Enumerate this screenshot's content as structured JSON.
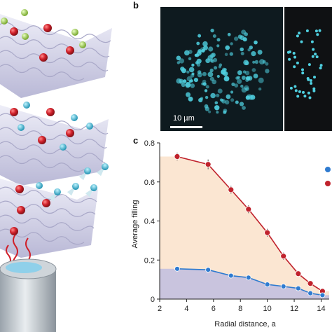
{
  "panel_labels": {
    "b": "b",
    "c": "c"
  },
  "scale_bar": {
    "label": "10 µm"
  },
  "colors": {
    "high_series": "#c0222c",
    "low_series": "#2f7bd0",
    "high_fill": "#fbe6d2",
    "low_fill": "#c9c4de",
    "atom_blue": "#4fd0e0",
    "lattice": "#d9d9ee"
  },
  "chart_data": {
    "type": "line",
    "title": "",
    "xlabel": "Radial distance, a",
    "ylabel": "Average filling",
    "xlim": [
      2,
      14.6
    ],
    "ylim": [
      0,
      0.8
    ],
    "xticks": [
      2,
      4,
      6,
      8,
      10,
      12,
      14
    ],
    "yticks": [
      0,
      0.2,
      0.4,
      0.6,
      0.8
    ],
    "grid": false,
    "series": [
      {
        "color": "#c0222c",
        "x": [
          3.3,
          5.6,
          7.3,
          8.6,
          10.0,
          11.2,
          12.3,
          13.2,
          14.1
        ],
        "y": [
          0.73,
          0.69,
          0.56,
          0.46,
          0.34,
          0.22,
          0.13,
          0.08,
          0.04
        ],
        "err": [
          0.02,
          0.025,
          0.02,
          0.02,
          0.02,
          0.018,
          0.015,
          0.012,
          0.01
        ]
      },
      {
        "color": "#2f7bd0",
        "x": [
          3.3,
          5.6,
          7.3,
          8.6,
          10.0,
          11.2,
          12.3,
          13.2,
          14.1
        ],
        "y": [
          0.155,
          0.15,
          0.12,
          0.11,
          0.075,
          0.065,
          0.055,
          0.03,
          0.02
        ]
      }
    ],
    "fill_bands": [
      {
        "color": "#fbe6d2",
        "level": 0.73,
        "x_end": 4.5
      },
      {
        "color": "#c9c4de",
        "level": 0.155,
        "x_end": 4.5
      }
    ]
  }
}
